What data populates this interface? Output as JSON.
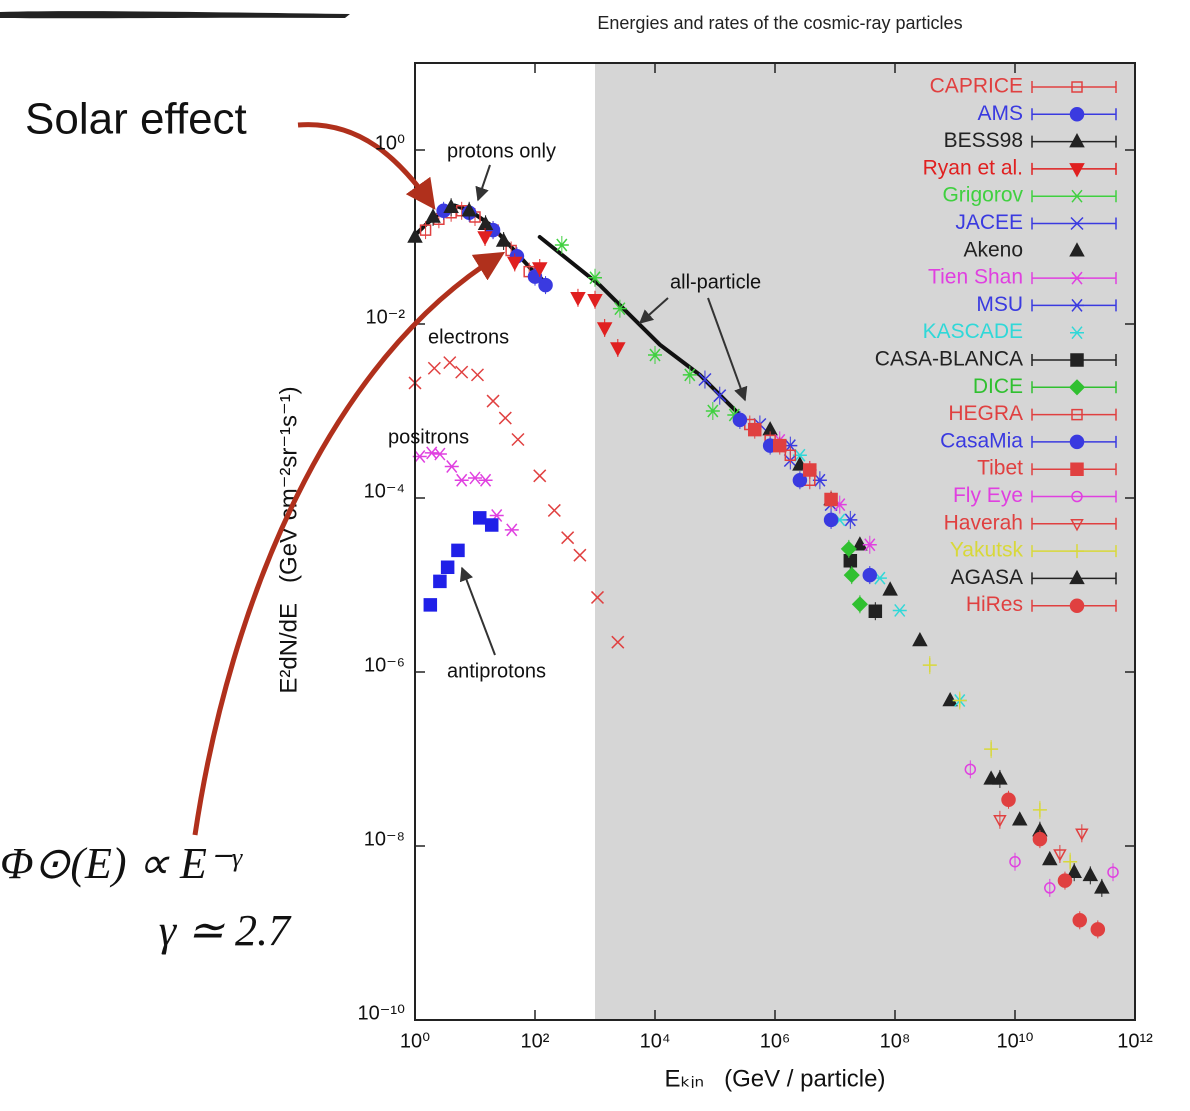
{
  "chart_data": {
    "type": "scatter",
    "title": "Energies and rates of the cosmic-ray particles",
    "x_label": "Eₖᵢₙ   (GeV / particle)",
    "y_label": "E²dN/dE   (GeV cm⁻²sr⁻¹s⁻¹)",
    "log_x": true,
    "log_y": true,
    "xlim": [
      1,
      1000000000000
    ],
    "ylim": [
      1e-10,
      10
    ],
    "xticks": [
      {
        "value": 1,
        "label": "10⁰"
      },
      {
        "value": 100,
        "label": "10²"
      },
      {
        "value": 10000,
        "label": "10⁴"
      },
      {
        "value": 1000000,
        "label": "10⁶"
      },
      {
        "value": 100000000,
        "label": "10⁸"
      },
      {
        "value": 10000000000,
        "label": "10¹⁰"
      },
      {
        "value": 1000000000000,
        "label": "10¹²"
      }
    ],
    "yticks": [
      {
        "value": 1e-10,
        "label": "10⁻¹⁰"
      },
      {
        "value": 1e-08,
        "label": "10⁻⁸"
      },
      {
        "value": 1e-06,
        "label": "10⁻⁶"
      },
      {
        "value": 0.0001,
        "label": "10⁻⁴"
      },
      {
        "value": 0.01,
        "label": "10⁻²"
      },
      {
        "value": 1,
        "label": "10⁰"
      }
    ],
    "shaded_region": [
      1000,
      1000000000000
    ],
    "shade_color": "#d6d6d6",
    "legend": "top-right",
    "annotations": [
      "protons only",
      "all-particle",
      "electrons",
      "positrons",
      "antiprotons"
    ],
    "side_notes": {
      "solar": "Solar effect",
      "formula": "Φ⊙(E) ∝ E⁻ᵞ",
      "gamma": "γ ≃ 2.7"
    },
    "curves": [
      {
        "color": "#111",
        "x": [
          1,
          1.5,
          2.6,
          4.6,
          8.3,
          18,
          38,
          83,
          165
        ],
        "values": [
          0.105,
          0.138,
          0.19,
          0.23,
          0.2,
          0.138,
          0.08,
          0.044,
          0.028
        ]
      },
      {
        "color": "#111",
        "x": [
          120,
          1200,
          12000,
          56000,
          260000
        ],
        "values": [
          0.1,
          0.028,
          0.0058,
          0.0026,
          0.0009
        ]
      }
    ],
    "series": [
      {
        "marker": "x",
        "color": "#e04040",
        "error_bars": false,
        "x": [
          1,
          2.1,
          3.8,
          6,
          11,
          20,
          32,
          52,
          120,
          210,
          350,
          560,
          1100,
          2400
        ],
        "values": [
          0.0021,
          0.0031,
          0.0036,
          0.0028,
          0.0026,
          0.0013,
          0.00083,
          0.00047,
          0.00018,
          7.2e-05,
          3.5e-05,
          2.2e-05,
          7.2e-06,
          2.2e-06
        ]
      },
      {
        "marker": "asterisk",
        "color": "#e040e0",
        "error_bars": false,
        "x": [
          1.2,
          1.9,
          2.6,
          4.1,
          6,
          10,
          15,
          23,
          41
        ],
        "values": [
          0.0003,
          0.00033,
          0.00032,
          0.00023,
          0.00016,
          0.00017,
          0.00016,
          6.3e-05,
          4.3e-05
        ]
      },
      {
        "marker": "square",
        "color": "#2020e8",
        "error_bars": false,
        "x": [
          1.8,
          2.6,
          3.5,
          5.2,
          12,
          19
        ],
        "values": [
          5.9e-06,
          1.1e-05,
          1.6e-05,
          2.5e-05,
          5.9e-05,
          4.9e-05
        ]
      },
      {
        "name": "CAPRICE",
        "marker": "square-open",
        "color": "#e04040",
        "error_bars": true,
        "x": [
          1.5,
          2.5,
          4,
          6,
          10,
          20,
          40,
          80
        ],
        "values": [
          0.12,
          0.16,
          0.19,
          0.2,
          0.17,
          0.12,
          0.07,
          0.04
        ]
      },
      {
        "name": "AMS",
        "marker": "circle",
        "color": "#3a3ae0",
        "error_bars": true,
        "x": [
          3,
          8,
          20,
          50,
          100,
          150
        ],
        "values": [
          0.2,
          0.19,
          0.12,
          0.06,
          0.035,
          0.028
        ]
      },
      {
        "name": "BESS98",
        "marker": "triangle",
        "color": "#222",
        "error_bars": true,
        "x": [
          1,
          2,
          4,
          8,
          15,
          30
        ],
        "values": [
          0.1,
          0.17,
          0.22,
          0.2,
          0.14,
          0.09
        ]
      },
      {
        "name": "Ryan et al.",
        "marker": "triangle-down",
        "color": "#e02020",
        "error_bars": true,
        "x": [
          14.7,
          46,
          120,
          520,
          1000,
          1450,
          2400
        ],
        "values": [
          0.1,
          0.051,
          0.044,
          0.02,
          0.019,
          0.009,
          0.0053
        ]
      },
      {
        "name": "Grigorov",
        "marker": "asterisk",
        "color": "#40d040",
        "error_bars": true,
        "x": [
          280,
          1000,
          2600,
          10000,
          38000,
          92000,
          210000
        ],
        "values": [
          0.081,
          0.034,
          0.015,
          0.0044,
          0.0026,
          0.001,
          0.0009
        ]
      },
      {
        "name": "JACEE",
        "marker": "x",
        "color": "#3a3ae0",
        "error_bars": true,
        "x": [
          68000,
          120000,
          560000,
          1800000,
          8600000
        ],
        "values": [
          0.0023,
          0.0015,
          0.0007,
          0.00027,
          8.4e-05
        ]
      },
      {
        "name": "Akeno",
        "marker": "triangle",
        "color": "#222",
        "error_bars": false,
        "x": [
          830000,
          2600000,
          8600000,
          26000000,
          83000000,
          260000000,
          830000000,
          4000000000,
          12000000000,
          38000000000
        ],
        "values": [
          0.00061,
          0.00024,
          9.6e-05,
          2.9e-05,
          8.8e-06,
          2.3e-06,
          4.7e-07,
          5.9e-08,
          2e-08,
          7e-09
        ]
      },
      {
        "name": "Tien Shan",
        "marker": "asterisk",
        "color": "#e040e0",
        "error_bars": true,
        "x": [
          1200000,
          3800000,
          12000000,
          38000000
        ],
        "values": [
          0.00046,
          0.00021,
          8.4e-05,
          2.9e-05
        ]
      },
      {
        "name": "MSU",
        "marker": "asterisk",
        "color": "#3a3ae0",
        "error_bars": true,
        "x": [
          1800000,
          5600000,
          18000000
        ],
        "values": [
          0.0004,
          0.00016,
          5.6e-05
        ]
      },
      {
        "name": "KASCADE",
        "marker": "asterisk",
        "color": "#30d8d8",
        "error_bars": false,
        "x": [
          2600000,
          12000000,
          56000000,
          120000000,
          1200000000
        ],
        "values": [
          0.00031,
          5.6e-05,
          1.2e-05,
          5.1e-06,
          4.7e-07
        ]
      },
      {
        "name": "CASA-BLANCA",
        "marker": "square",
        "color": "#222",
        "error_bars": true,
        "x": [
          18000000,
          47000000
        ],
        "values": [
          1.9e-05,
          5e-06
        ]
      },
      {
        "name": "DICE",
        "marker": "diamond",
        "color": "#30c030",
        "error_bars": true,
        "x": [
          17000000,
          19000000,
          26000000
        ],
        "values": [
          2.6e-05,
          1.3e-05,
          6e-06
        ]
      },
      {
        "name": "HEGRA",
        "marker": "square-open",
        "color": "#e04040",
        "error_bars": true,
        "x": [
          380000,
          830000,
          1800000,
          3800000
        ],
        "values": [
          0.0007,
          0.00046,
          0.00031,
          0.00016
        ]
      },
      {
        "name": "CasaMia",
        "marker": "circle",
        "color": "#3a3ae0",
        "error_bars": true,
        "x": [
          260000,
          830000,
          2600000,
          8600000,
          38000000
        ],
        "values": [
          0.00079,
          0.0004,
          0.00016,
          5.6e-05,
          1.3e-05
        ]
      },
      {
        "name": "Tibet",
        "marker": "square",
        "color": "#e04040",
        "error_bars": true,
        "x": [
          460000,
          1200000,
          3800000,
          8600000
        ],
        "values": [
          0.00061,
          0.0004,
          0.00021,
          9.6e-05
        ]
      },
      {
        "name": "Fly Eye",
        "marker": "circle-open",
        "color": "#e040e0",
        "error_bars": true,
        "x": [
          1800000000,
          10000000000,
          38000000000,
          430000000000
        ],
        "values": [
          7.6e-08,
          6.6e-09,
          3.3e-09,
          5e-09
        ]
      },
      {
        "name": "Haverah",
        "marker": "triangle-down-open",
        "color": "#e04040",
        "error_bars": true,
        "x": [
          5600000000,
          56000000000,
          130000000000
        ],
        "values": [
          2e-08,
          8.1e-09,
          1.4e-08
        ]
      },
      {
        "name": "Yakutsk",
        "marker": "plus",
        "color": "#d8d83a",
        "error_bars": true,
        "x": [
          380000000,
          1200000000,
          4000000000,
          26000000000,
          83000000000
        ],
        "values": [
          1.2e-06,
          4.7e-07,
          1.3e-07,
          2.6e-08,
          6.6e-09
        ]
      },
      {
        "name": "AGASA",
        "marker": "triangle",
        "color": "#222",
        "error_bars": true,
        "x": [
          5600000000,
          26000000000,
          97000000000,
          180000000000,
          280000000000
        ],
        "values": [
          5.9e-08,
          1.5e-08,
          5e-09,
          4.6e-09,
          3.3e-09
        ]
      },
      {
        "name": "HiRes",
        "marker": "circle",
        "color": "#e04040",
        "error_bars": true,
        "x": [
          7800000000,
          26000000000,
          68000000000,
          120000000000,
          240000000000
        ],
        "values": [
          3.4e-08,
          1.2e-08,
          4e-09,
          1.4e-09,
          1.1e-09
        ]
      }
    ]
  }
}
